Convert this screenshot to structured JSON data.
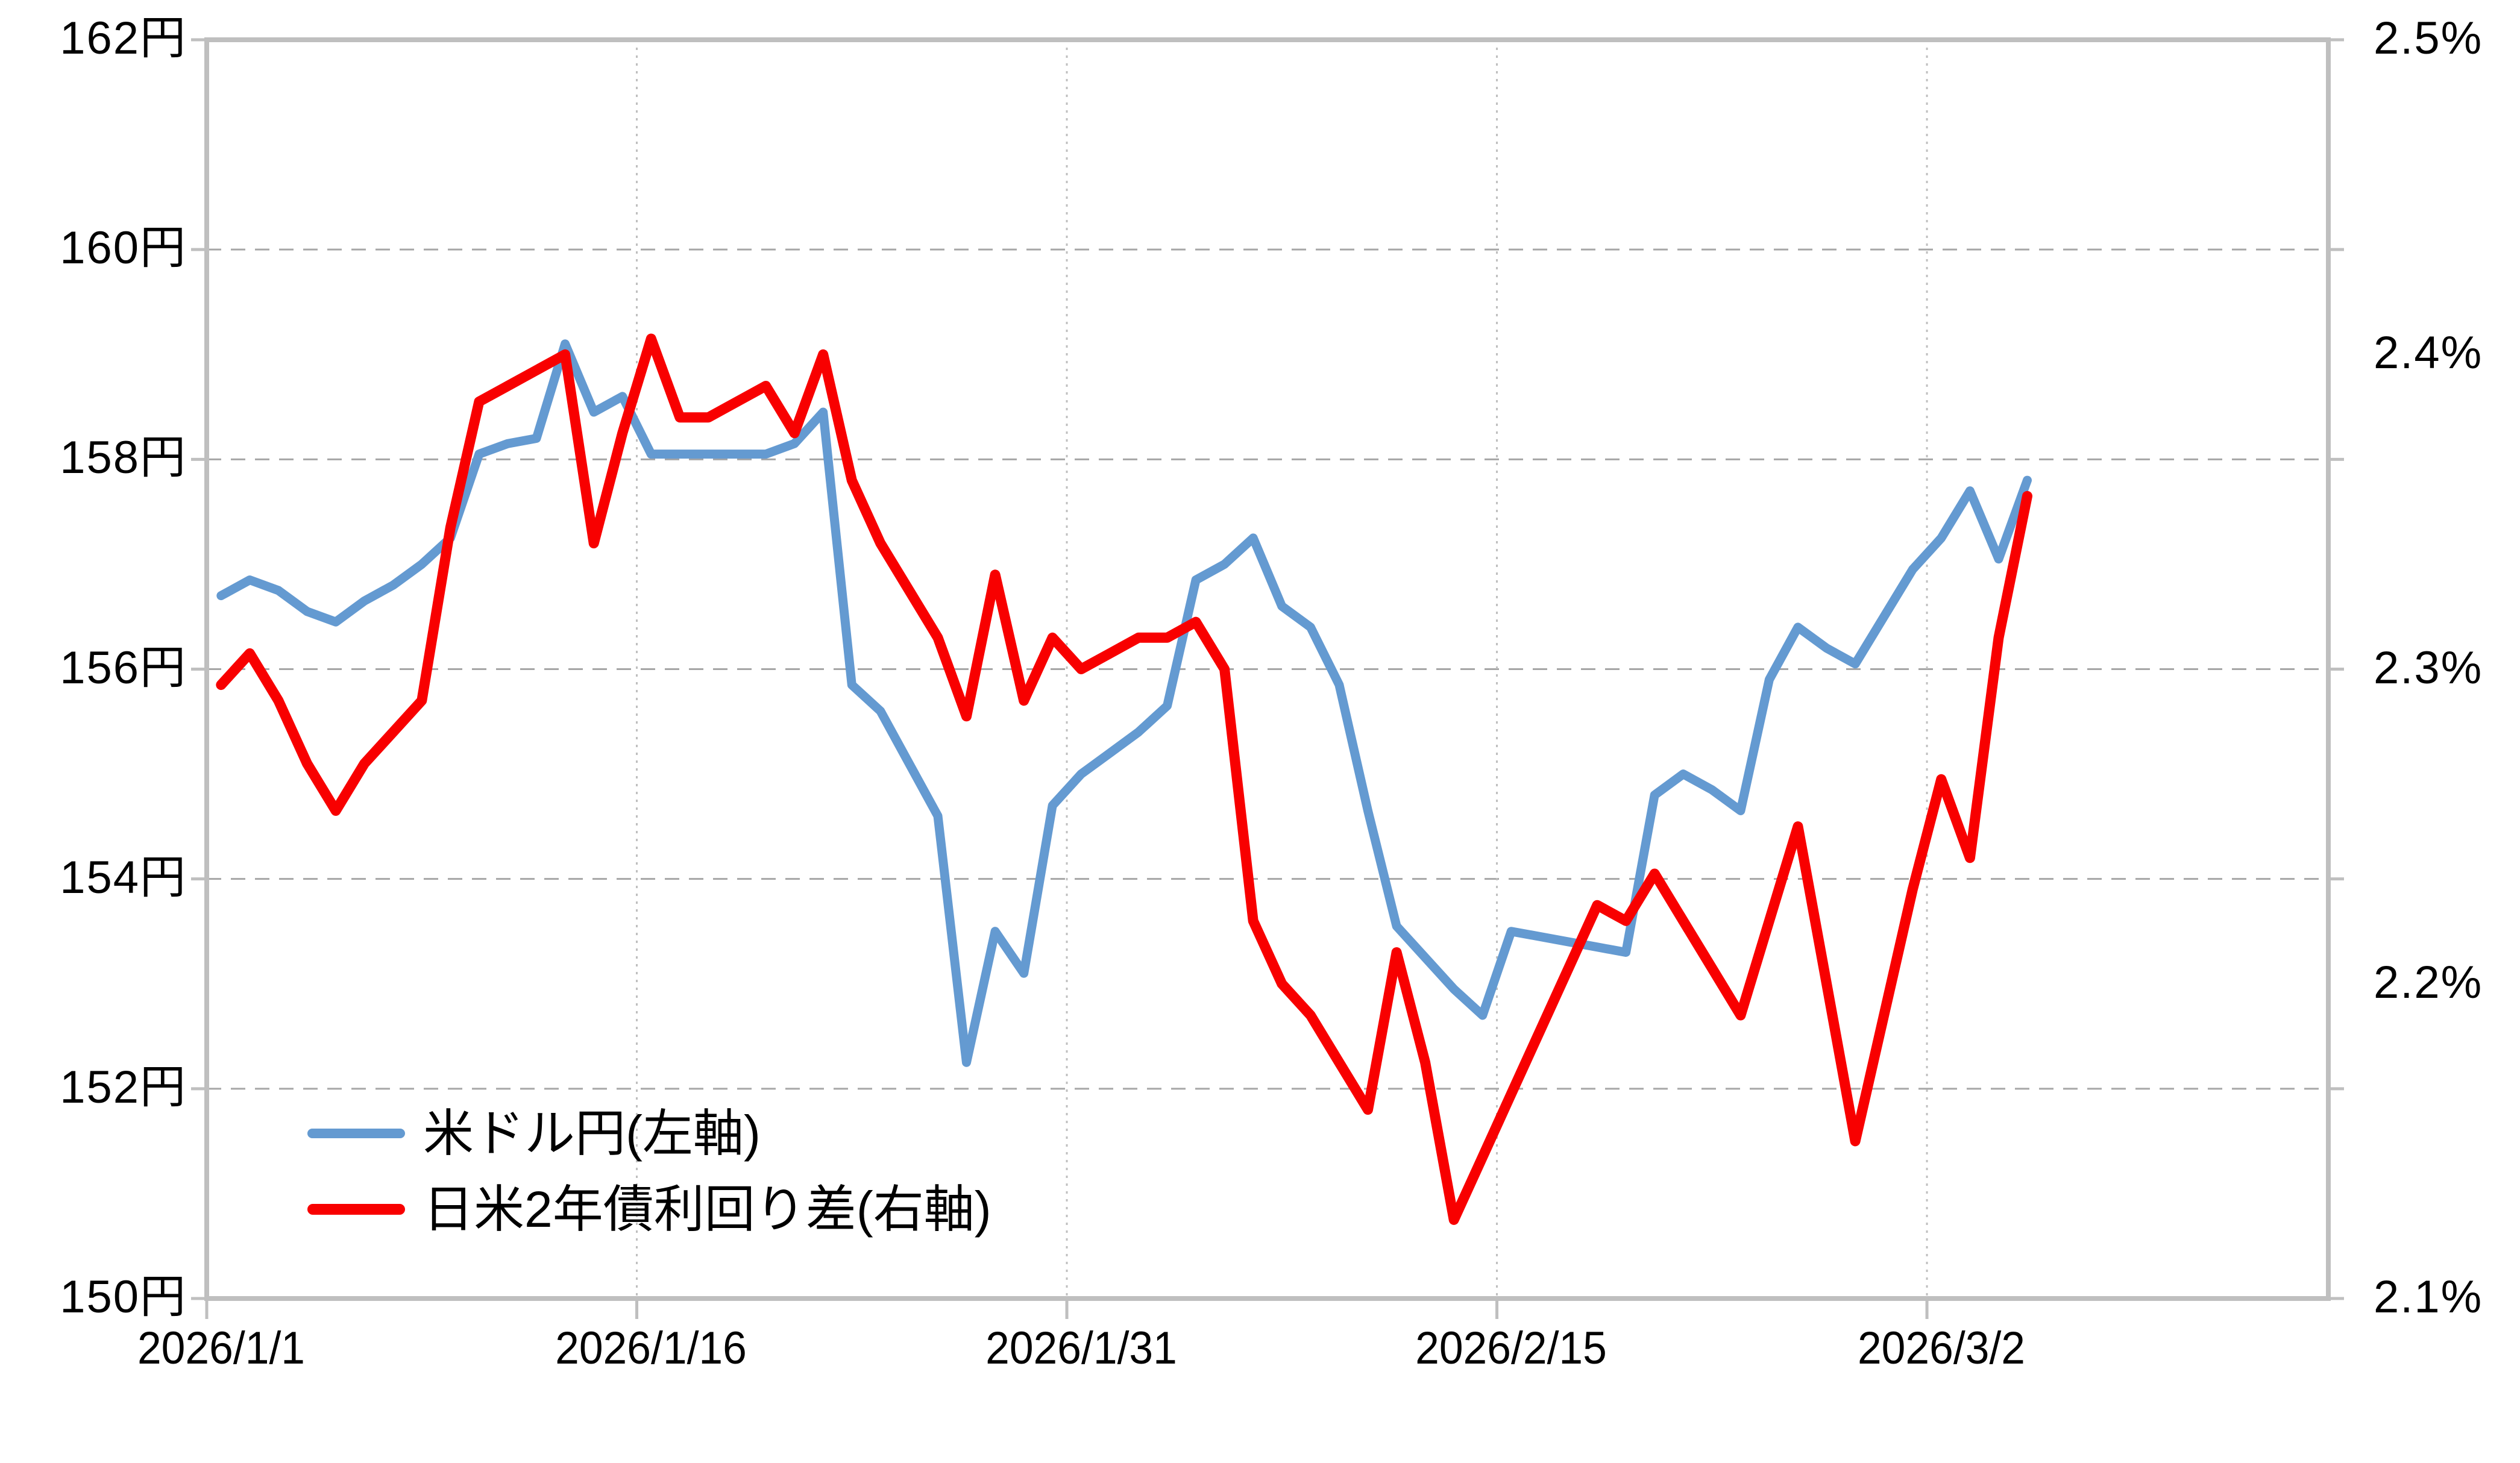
{
  "chart_data": {
    "type": "line",
    "title": "",
    "x_dates": [
      "2026/1/1",
      "2026/1/2",
      "2026/1/3",
      "2026/1/4",
      "2026/1/5",
      "2026/1/6",
      "2026/1/7",
      "2026/1/8",
      "2026/1/9",
      "2026/1/10",
      "2026/1/11",
      "2026/1/12",
      "2026/1/13",
      "2026/1/14",
      "2026/1/15",
      "2026/1/16",
      "2026/1/17",
      "2026/1/18",
      "2026/1/19",
      "2026/1/20",
      "2026/1/21",
      "2026/1/22",
      "2026/1/23",
      "2026/1/24",
      "2026/1/25",
      "2026/1/26",
      "2026/1/27",
      "2026/1/28",
      "2026/1/29",
      "2026/1/30",
      "2026/1/31",
      "2026/2/1",
      "2026/2/2",
      "2026/2/3",
      "2026/2/4",
      "2026/2/5",
      "2026/2/6",
      "2026/2/7",
      "2026/2/8",
      "2026/2/9",
      "2026/2/10",
      "2026/2/11",
      "2026/2/12",
      "2026/2/13",
      "2026/2/14",
      "2026/2/15",
      "2026/2/16",
      "2026/2/17",
      "2026/2/18",
      "2026/2/19",
      "2026/2/20",
      "2026/2/21",
      "2026/2/22",
      "2026/2/23",
      "2026/2/24",
      "2026/2/25",
      "2026/2/26",
      "2026/2/27",
      "2026/2/28",
      "2026/3/1",
      "2026/3/2",
      "2026/3/3",
      "2026/3/4",
      "2026/3/5"
    ],
    "x_axis": {
      "tick_labels": [
        "2026/1/1",
        "2026/1/16",
        "2026/1/31",
        "2026/2/15",
        "2026/3/2"
      ],
      "tick_days": [
        0,
        15,
        30,
        45,
        60
      ],
      "total_slots": 74
    },
    "left_axis": {
      "unit": "円",
      "min": 150,
      "max": 162,
      "step": 2,
      "tick_labels": [
        "150円",
        "152円",
        "154円",
        "156円",
        "158円",
        "160円",
        "162円"
      ]
    },
    "right_axis": {
      "unit": "%",
      "min": 2.1,
      "max": 2.5,
      "step": 0.1,
      "tick_labels": [
        "2.1%",
        "2.2%",
        "2.3%",
        "2.4%",
        "2.5%"
      ]
    },
    "grid": {
      "horizontal_style": "dashed",
      "vertical_style": "dotted",
      "grid_color": "#A6A6A6",
      "axis_color": "#BFBFBF"
    },
    "legend": {
      "position": "inside-bottom-left"
    },
    "series": [
      {
        "name": "米ドル円(左軸)",
        "axis": "left",
        "color": "#649AD1",
        "stroke_width": 15,
        "values": [
          156.7,
          156.85,
          156.75,
          156.55,
          156.45,
          156.65,
          156.8,
          157.0,
          157.25,
          158.05,
          158.15,
          158.2,
          159.1,
          158.45,
          158.6,
          158.05,
          158.05,
          158.05,
          158.05,
          158.05,
          158.15,
          158.45,
          155.85,
          155.6,
          155.1,
          154.6,
          152.25,
          153.5,
          153.1,
          154.7,
          155.0,
          155.2,
          155.4,
          155.65,
          156.85,
          157.0,
          157.25,
          156.6,
          156.4,
          155.85,
          154.65,
          153.55,
          153.25,
          152.95,
          152.7,
          153.5,
          153.45,
          153.4,
          153.35,
          153.3,
          154.8,
          155.0,
          154.85,
          154.65,
          155.9,
          156.4,
          156.2,
          156.05,
          156.5,
          156.95,
          157.25,
          157.7,
          157.05,
          157.8
        ]
      },
      {
        "name": "日米2年債利回り差(右軸)",
        "axis": "right",
        "color": "#F80000",
        "stroke_width": 17,
        "values": [
          2.295,
          2.305,
          2.29,
          2.27,
          2.255,
          2.27,
          2.28,
          2.29,
          2.345,
          2.385,
          2.39,
          2.395,
          2.4,
          2.34,
          2.375,
          2.405,
          2.38,
          2.38,
          2.385,
          2.39,
          2.375,
          2.4,
          2.36,
          2.34,
          2.325,
          2.31,
          2.285,
          2.33,
          2.29,
          2.31,
          2.3,
          2.305,
          2.31,
          2.31,
          2.315,
          2.3,
          2.22,
          2.2,
          2.19,
          2.175,
          2.16,
          2.21,
          2.175,
          2.125,
          2.145,
          2.165,
          2.185,
          2.205,
          2.225,
          2.22,
          2.235,
          2.22,
          2.205,
          2.19,
          2.22,
          2.25,
          2.2,
          2.15,
          2.19,
          2.23,
          2.265,
          2.24,
          2.31,
          2.355
        ]
      }
    ]
  },
  "colors": {
    "background": "#FFFFFF",
    "text": "#000000",
    "usd_jpy_line": "#649AD1",
    "yield_diff_line": "#F80000",
    "gridline": "#A6A6A6",
    "axis_border": "#BFBFBF"
  }
}
